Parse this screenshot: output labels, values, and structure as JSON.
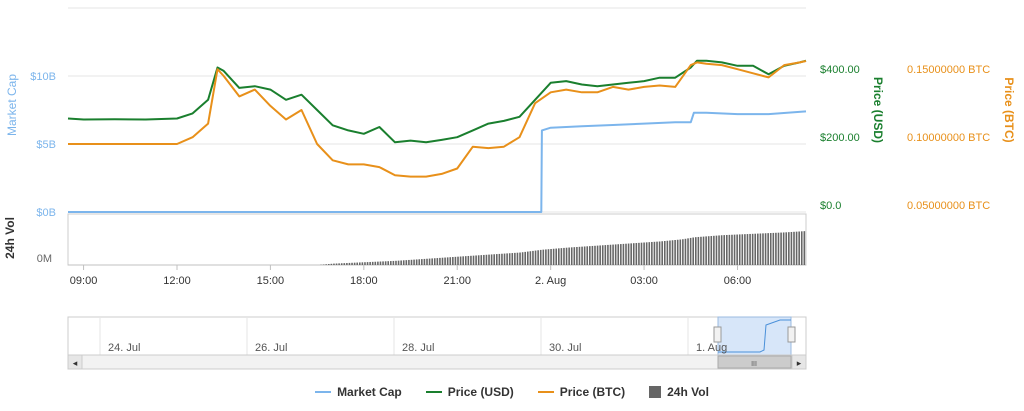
{
  "chart_data": {
    "type": "line",
    "axes": {
      "market_cap": {
        "label": "Market Cap",
        "ticks": [
          "$0B",
          "$5B",
          "$10B"
        ],
        "range": [
          0,
          15
        ],
        "color": "#7cb5ec"
      },
      "price_usd": {
        "label": "Price (USD)",
        "ticks": [
          "$0.0",
          "$200.00",
          "$400.00"
        ],
        "range": [
          0,
          600
        ],
        "color": "#1a7f2e"
      },
      "price_btc": {
        "label": "Price (BTC)",
        "ticks": [
          "0.05000000 BTC",
          "0.10000000 BTC",
          "0.15000000 BTC"
        ],
        "range": [
          0.05,
          0.2
        ],
        "color": "#e8901a"
      },
      "volume": {
        "label": "24h Vol",
        "ticks": [
          "0M"
        ],
        "color": "#666666"
      }
    },
    "x_ticks": [
      "09:00",
      "12:00",
      "15:00",
      "18:00",
      "21:00",
      "2. Aug",
      "03:00",
      "06:00"
    ],
    "x_range": [
      8.5,
      32.2
    ],
    "series": [
      {
        "name": "Market Cap",
        "axis": "market_cap",
        "color": "#7cb5ec",
        "x": [
          8.5,
          23.7,
          23.72,
          24.0,
          25.0,
          26.0,
          27.0,
          28.0,
          28.5,
          28.6,
          29.0,
          30.0,
          31.0,
          32.2
        ],
        "y": [
          0,
          0,
          6.0,
          6.2,
          6.3,
          6.4,
          6.5,
          6.6,
          6.6,
          7.3,
          7.3,
          7.2,
          7.2,
          7.4
        ]
      },
      {
        "name": "Price (USD)",
        "axis": "price_usd",
        "color": "#1a7f2e",
        "x": [
          8.5,
          9.0,
          10.0,
          11.0,
          12.0,
          12.5,
          13.0,
          13.3,
          13.5,
          14.0,
          14.5,
          15.0,
          15.5,
          16.0,
          16.5,
          17.0,
          17.5,
          18.0,
          18.5,
          19.0,
          19.5,
          20.0,
          20.5,
          21.0,
          21.5,
          22.0,
          22.5,
          23.0,
          23.5,
          24.0,
          24.5,
          25.0,
          25.5,
          26.0,
          26.5,
          27.0,
          27.5,
          28.0,
          28.5,
          28.7,
          29.0,
          29.5,
          30.0,
          30.5,
          31.0,
          31.5,
          32.0,
          32.2
        ],
        "y": [
          275,
          272,
          273,
          272,
          275,
          290,
          330,
          425,
          415,
          365,
          370,
          360,
          330,
          345,
          300,
          255,
          240,
          230,
          250,
          205,
          210,
          205,
          212,
          220,
          240,
          260,
          268,
          280,
          330,
          380,
          385,
          375,
          370,
          375,
          380,
          385,
          395,
          395,
          425,
          445,
          445,
          440,
          430,
          430,
          405,
          430,
          440,
          445
        ]
      },
      {
        "name": "Price (BTC)",
        "axis": "price_btc",
        "color": "#e8901a",
        "x": [
          8.5,
          9.0,
          10.0,
          11.0,
          12.0,
          12.5,
          13.0,
          13.3,
          13.5,
          14.0,
          14.5,
          15.0,
          15.5,
          16.0,
          16.5,
          17.0,
          17.5,
          18.0,
          18.5,
          19.0,
          19.5,
          20.0,
          20.5,
          21.0,
          21.5,
          22.0,
          22.5,
          23.0,
          23.5,
          24.0,
          24.5,
          25.0,
          25.5,
          26.0,
          26.5,
          27.0,
          27.5,
          28.0,
          28.5,
          28.7,
          29.0,
          29.5,
          30.0,
          30.5,
          31.0,
          31.5,
          32.0,
          32.2
        ],
        "y": [
          0.1,
          0.1,
          0.1,
          0.1,
          0.1,
          0.105,
          0.115,
          0.155,
          0.15,
          0.135,
          0.14,
          0.128,
          0.118,
          0.125,
          0.1,
          0.088,
          0.085,
          0.085,
          0.083,
          0.077,
          0.076,
          0.076,
          0.078,
          0.082,
          0.098,
          0.097,
          0.098,
          0.105,
          0.13,
          0.138,
          0.14,
          0.138,
          0.138,
          0.142,
          0.14,
          0.142,
          0.143,
          0.142,
          0.158,
          0.16,
          0.159,
          0.158,
          0.155,
          0.152,
          0.149,
          0.158,
          0.16,
          0.161
        ]
      },
      {
        "name": "24h Vol",
        "axis": "volume",
        "color": "#666666",
        "x": [
          8.5,
          16.5,
          17.0,
          18.0,
          19.0,
          20.0,
          21.0,
          22.0,
          23.0,
          23.7,
          24.5,
          25.5,
          26.5,
          27.5,
          28.2,
          28.6,
          29.5,
          30.5,
          31.5,
          32.2
        ],
        "y": [
          0,
          0,
          2,
          4,
          6,
          9,
          12,
          15,
          18,
          22,
          25,
          28,
          31,
          34,
          37,
          40,
          43,
          45,
          47,
          49
        ]
      }
    ],
    "grid": true,
    "legend_position": "bottom"
  },
  "navigator": {
    "labels": [
      "24. Jul",
      "26. Jul",
      "28. Jul",
      "30. Jul",
      "1. Aug"
    ],
    "scroll_left_arrow": "◂",
    "scroll_right_arrow": "▸",
    "scroll_grip": "III"
  },
  "legend": [
    {
      "name": "Market Cap",
      "type": "line",
      "color": "#7cb5ec"
    },
    {
      "name": "Price (USD)",
      "type": "line",
      "color": "#1a7f2e"
    },
    {
      "name": "Price (BTC)",
      "type": "line",
      "color": "#e8901a"
    },
    {
      "name": "24h Vol",
      "type": "box",
      "color": "#666666"
    }
  ]
}
